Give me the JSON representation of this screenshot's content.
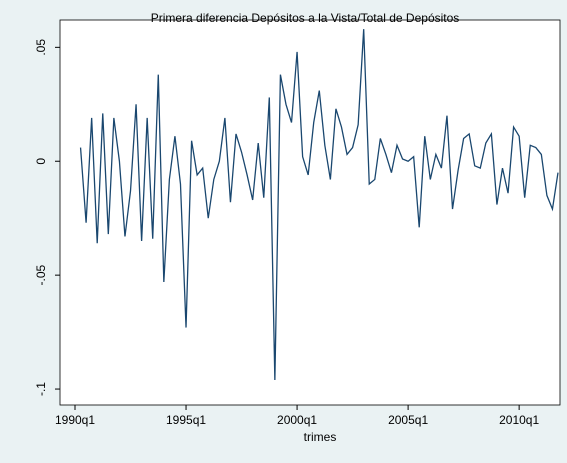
{
  "chart_data": {
    "type": "line",
    "title": "Primera diferencia Depósitos a la Vista/Total de Depósitos",
    "xlabel": "trimes",
    "x": [
      "1990q1",
      "1990q2",
      "1990q3",
      "1990q4",
      "1991q1",
      "1991q2",
      "1991q3",
      "1991q4",
      "1992q1",
      "1992q2",
      "1992q3",
      "1992q4",
      "1993q1",
      "1993q2",
      "1993q3",
      "1993q4",
      "1994q1",
      "1994q2",
      "1994q3",
      "1994q4",
      "1995q1",
      "1995q2",
      "1995q3",
      "1995q4",
      "1996q1",
      "1996q2",
      "1996q3",
      "1996q4",
      "1997q1",
      "1997q2",
      "1997q3",
      "1997q4",
      "1998q1",
      "1998q2",
      "1998q3",
      "1998q4",
      "1999q1",
      "1999q2",
      "1999q3",
      "1999q4",
      "2000q1",
      "2000q2",
      "2000q3",
      "2000q4",
      "2001q1",
      "2001q2",
      "2001q3",
      "2001q4",
      "2002q1",
      "2002q2",
      "2002q3",
      "2002q4",
      "2003q1",
      "2003q2",
      "2003q3",
      "2003q4",
      "2004q1",
      "2004q2",
      "2004q3",
      "2004q4",
      "2005q1",
      "2005q2",
      "2005q3",
      "2005q4",
      "2006q1",
      "2006q2",
      "2006q3",
      "2006q4",
      "2007q1",
      "2007q2",
      "2007q3",
      "2007q4",
      "2008q1",
      "2008q2",
      "2008q3",
      "2008q4",
      "2009q1",
      "2009q2",
      "2009q3",
      "2009q4",
      "2010q1",
      "2010q2",
      "2010q3",
      "2010q4",
      "2011q1",
      "2011q2",
      "2011q3",
      "2011q4"
    ],
    "series": [
      {
        "color": "#1a476f",
        "values": [
          null,
          0.006,
          -0.027,
          0.019,
          -0.036,
          0.021,
          -0.032,
          0.019,
          0.0,
          -0.033,
          -0.013,
          0.025,
          -0.035,
          0.019,
          -0.034,
          0.038,
          -0.053,
          -0.008,
          0.011,
          -0.01,
          -0.073,
          0.009,
          -0.006,
          -0.003,
          -0.025,
          -0.008,
          0.0,
          0.019,
          -0.018,
          0.012,
          0.004,
          -0.006,
          -0.017,
          0.008,
          -0.016,
          0.028,
          -0.096,
          0.038,
          0.025,
          0.017,
          0.048,
          0.002,
          -0.006,
          0.017,
          0.031,
          0.007,
          -0.008,
          0.023,
          0.015,
          0.003,
          0.006,
          0.016,
          0.058,
          -0.01,
          -0.008,
          0.01,
          0.003,
          -0.005,
          0.007,
          0.001,
          0.0,
          0.002,
          -0.029,
          0.011,
          -0.008,
          0.003,
          -0.003,
          0.02,
          -0.021,
          -0.004,
          0.01,
          0.012,
          -0.002,
          -0.003,
          0.008,
          0.012,
          -0.019,
          -0.003,
          -0.014,
          0.015,
          0.011,
          -0.016,
          0.007,
          0.006,
          0.003,
          -0.015,
          -0.021,
          -0.005
        ]
      }
    ],
    "xticks": [
      "1990q1",
      "1995q1",
      "2000q1",
      "2005q1",
      "2010q1"
    ],
    "ylim": [
      -0.107,
      0.062
    ],
    "yticks": [
      {
        "value": -0.1,
        "label": "-.1"
      },
      {
        "value": -0.05,
        "label": "-.05"
      },
      {
        "value": 0,
        "label": "0"
      },
      {
        "value": 0.05,
        "label": ".05"
      }
    ]
  }
}
